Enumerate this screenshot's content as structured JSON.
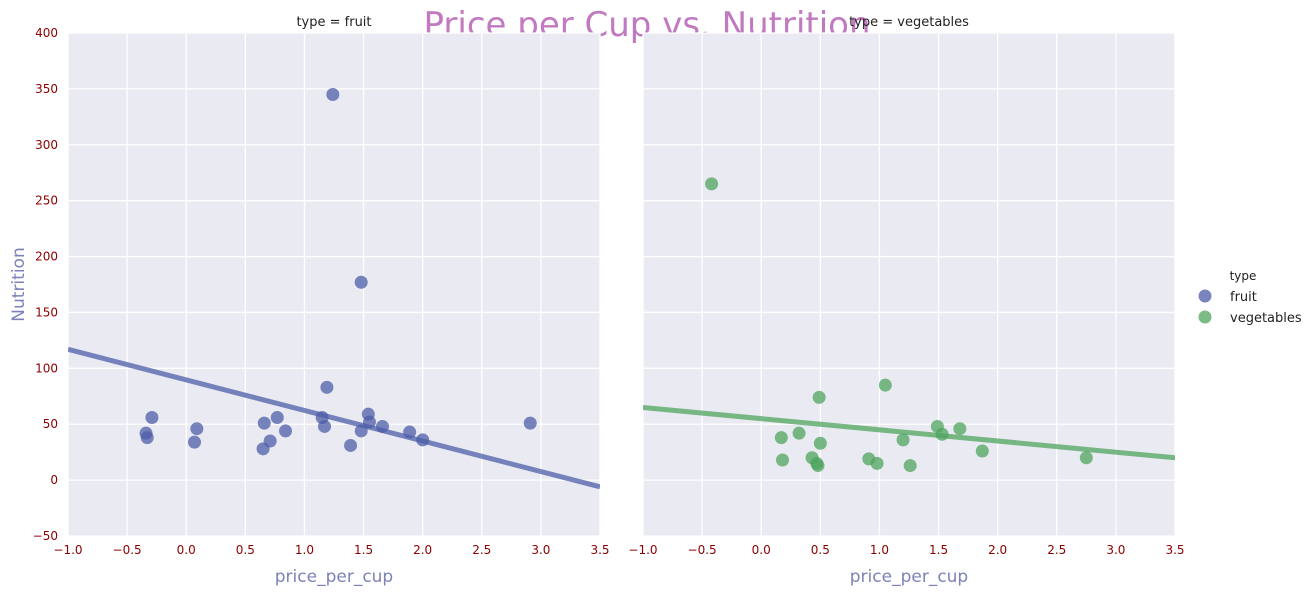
{
  "title": "Price per Cup vs. Nutrition",
  "colors": {
    "fruit": "#4c5ea8",
    "vegetables": "#4ea45e",
    "tick_text": "#8b0000",
    "axis_label": "#7c82b8",
    "title": "#c179c0",
    "panel_bg": "#eaeaf2"
  },
  "legend": {
    "title": "type",
    "items": [
      {
        "label": "fruit",
        "color_key": "fruit"
      },
      {
        "label": "vegetables",
        "color_key": "vegetables"
      }
    ],
    "placement": "right"
  },
  "chart_data": [
    {
      "type": "scatter",
      "title": "type = fruit",
      "xlabel": "price_per_cup",
      "ylabel": "Nutrition",
      "xlim": [
        -1.0,
        3.5
      ],
      "ylim": [
        -50,
        400
      ],
      "xticks": [
        "−1.0",
        "−0.5",
        "0.0",
        "0.5",
        "1.0",
        "1.5",
        "2.0",
        "2.5",
        "3.0",
        "3.5"
      ],
      "xtick_values": [
        -1.0,
        -0.5,
        0.0,
        0.5,
        1.0,
        1.5,
        2.0,
        2.5,
        3.0,
        3.5
      ],
      "yticks": [
        "−50",
        "0",
        "50",
        "100",
        "150",
        "200",
        "250",
        "300",
        "350",
        "400"
      ],
      "ytick_values": [
        -50,
        0,
        50,
        100,
        150,
        200,
        250,
        300,
        350,
        400
      ],
      "grid": true,
      "series": [
        {
          "name": "fruit",
          "color_key": "fruit",
          "points": [
            {
              "x": -0.34,
              "y": 42
            },
            {
              "x": -0.33,
              "y": 38
            },
            {
              "x": -0.29,
              "y": 56
            },
            {
              "x": 0.07,
              "y": 34
            },
            {
              "x": 0.09,
              "y": 46
            },
            {
              "x": 0.65,
              "y": 28
            },
            {
              "x": 0.66,
              "y": 51
            },
            {
              "x": 0.71,
              "y": 35
            },
            {
              "x": 0.77,
              "y": 56
            },
            {
              "x": 0.84,
              "y": 44
            },
            {
              "x": 1.15,
              "y": 56
            },
            {
              "x": 1.17,
              "y": 48
            },
            {
              "x": 1.19,
              "y": 83
            },
            {
              "x": 1.24,
              "y": 345
            },
            {
              "x": 1.39,
              "y": 31
            },
            {
              "x": 1.48,
              "y": 44
            },
            {
              "x": 1.48,
              "y": 177
            },
            {
              "x": 1.54,
              "y": 59
            },
            {
              "x": 1.55,
              "y": 52
            },
            {
              "x": 1.66,
              "y": 48
            },
            {
              "x": 1.89,
              "y": 43
            },
            {
              "x": 2.0,
              "y": 36
            },
            {
              "x": 2.91,
              "y": 51
            }
          ],
          "fit_line": {
            "x": [
              -1.0,
              3.5
            ],
            "y": [
              117,
              -6
            ]
          }
        }
      ]
    },
    {
      "type": "scatter",
      "title": "type = vegetables",
      "xlabel": "price_per_cup",
      "ylabel": "",
      "xlim": [
        -1.0,
        3.5
      ],
      "ylim": [
        -50,
        400
      ],
      "xticks": [
        "−1.0",
        "−0.5",
        "0.0",
        "0.5",
        "1.0",
        "1.5",
        "2.0",
        "2.5",
        "3.0",
        "3.5"
      ],
      "xtick_values": [
        -1.0,
        -0.5,
        0.0,
        0.5,
        1.0,
        1.5,
        2.0,
        2.5,
        3.0,
        3.5
      ],
      "grid": true,
      "series": [
        {
          "name": "vegetables",
          "color_key": "vegetables",
          "points": [
            {
              "x": -0.42,
              "y": 265
            },
            {
              "x": 0.17,
              "y": 38
            },
            {
              "x": 0.18,
              "y": 18
            },
            {
              "x": 0.32,
              "y": 42
            },
            {
              "x": 0.43,
              "y": 20
            },
            {
              "x": 0.47,
              "y": 15
            },
            {
              "x": 0.48,
              "y": 13
            },
            {
              "x": 0.49,
              "y": 74
            },
            {
              "x": 0.5,
              "y": 33
            },
            {
              "x": 0.91,
              "y": 19
            },
            {
              "x": 0.98,
              "y": 15
            },
            {
              "x": 1.05,
              "y": 85
            },
            {
              "x": 1.2,
              "y": 36
            },
            {
              "x": 1.26,
              "y": 13
            },
            {
              "x": 1.49,
              "y": 48
            },
            {
              "x": 1.53,
              "y": 41
            },
            {
              "x": 1.68,
              "y": 46
            },
            {
              "x": 1.87,
              "y": 26
            },
            {
              "x": 2.75,
              "y": 20
            }
          ],
          "fit_line": {
            "x": [
              -1.0,
              3.5
            ],
            "y": [
              65,
              20
            ]
          }
        }
      ]
    }
  ]
}
